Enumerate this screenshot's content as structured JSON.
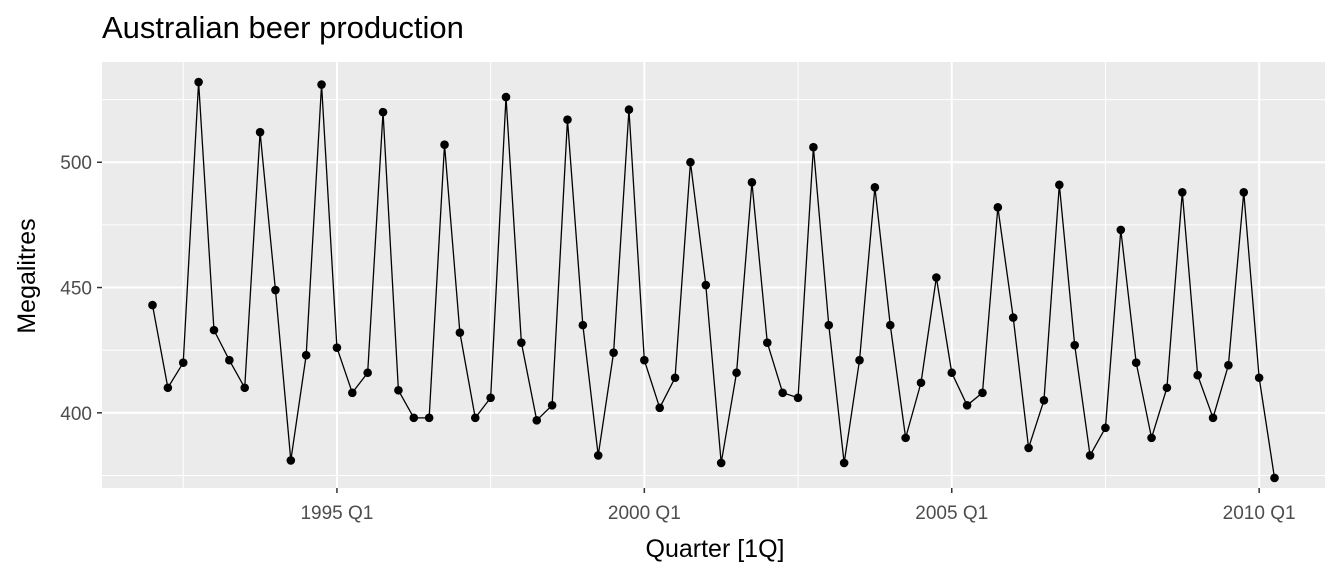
{
  "chart_data": {
    "type": "line",
    "title": "Australian beer production",
    "xlabel": "Quarter [1Q]",
    "ylabel": "Megalitres",
    "x_ticks": [
      "1995 Q1",
      "2000 Q1",
      "2005 Q1",
      "2010 Q1"
    ],
    "y_ticks": [
      "400",
      "450",
      "500"
    ],
    "ylim": [
      370,
      540
    ],
    "grid": true,
    "markers": true,
    "line_color": "#000000",
    "panel_background": "#ebebeb",
    "grid_color": "#ffffff",
    "x": [
      "1992 Q1",
      "1992 Q2",
      "1992 Q3",
      "1992 Q4",
      "1993 Q1",
      "1993 Q2",
      "1993 Q3",
      "1993 Q4",
      "1994 Q1",
      "1994 Q2",
      "1994 Q3",
      "1994 Q4",
      "1995 Q1",
      "1995 Q2",
      "1995 Q3",
      "1995 Q4",
      "1996 Q1",
      "1996 Q2",
      "1996 Q3",
      "1996 Q4",
      "1997 Q1",
      "1997 Q2",
      "1997 Q3",
      "1997 Q4",
      "1998 Q1",
      "1998 Q2",
      "1998 Q3",
      "1998 Q4",
      "1999 Q1",
      "1999 Q2",
      "1999 Q3",
      "1999 Q4",
      "2000 Q1",
      "2000 Q2",
      "2000 Q3",
      "2000 Q4",
      "2001 Q1",
      "2001 Q2",
      "2001 Q3",
      "2001 Q4",
      "2002 Q1",
      "2002 Q2",
      "2002 Q3",
      "2002 Q4",
      "2003 Q1",
      "2003 Q2",
      "2003 Q3",
      "2003 Q4",
      "2004 Q1",
      "2004 Q2",
      "2004 Q3",
      "2004 Q4",
      "2005 Q1",
      "2005 Q2",
      "2005 Q3",
      "2005 Q4",
      "2006 Q1",
      "2006 Q2",
      "2006 Q3",
      "2006 Q4",
      "2007 Q1",
      "2007 Q2",
      "2007 Q3",
      "2007 Q4",
      "2008 Q1",
      "2008 Q2",
      "2008 Q3",
      "2008 Q4",
      "2009 Q1",
      "2009 Q2",
      "2009 Q3",
      "2009 Q4",
      "2010 Q1",
      "2010 Q2"
    ],
    "values": [
      443,
      410,
      420,
      532,
      433,
      421,
      410,
      512,
      449,
      381,
      423,
      531,
      426,
      408,
      416,
      520,
      409,
      398,
      398,
      507,
      432,
      398,
      406,
      526,
      428,
      397,
      403,
      517,
      435,
      383,
      424,
      521,
      421,
      402,
      414,
      500,
      451,
      380,
      416,
      492,
      428,
      408,
      406,
      506,
      435,
      380,
      421,
      490,
      435,
      390,
      412,
      454,
      416,
      403,
      408,
      482,
      438,
      386,
      405,
      491,
      427,
      383,
      394,
      473,
      420,
      390,
      410,
      488,
      415,
      398,
      419,
      488,
      414,
      374
    ]
  }
}
